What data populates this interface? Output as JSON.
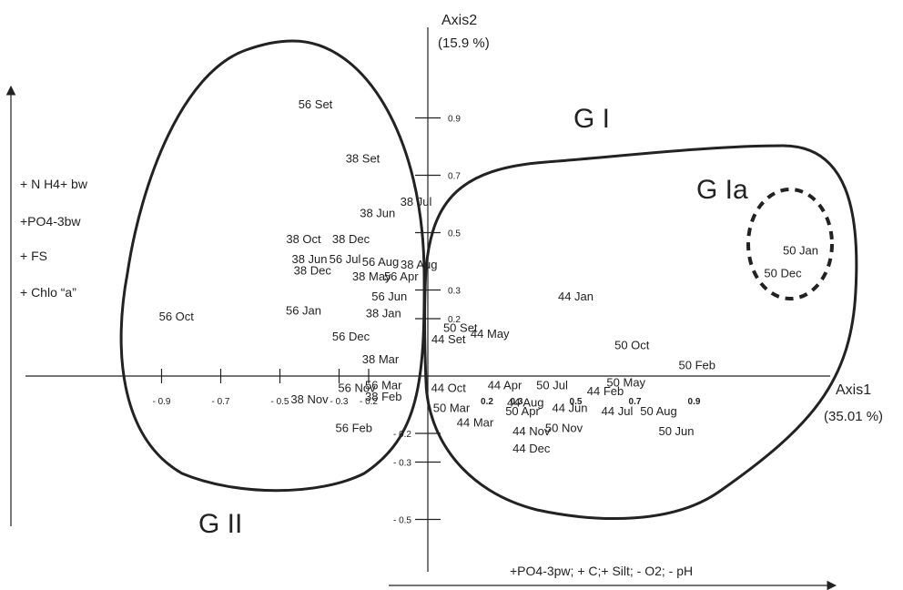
{
  "chart_data": {
    "type": "scatter",
    "axis1_label": "Axis1",
    "axis1_variance": "(35.01 %)",
    "axis2_label": "Axis2",
    "axis2_variance": "(15.9 %)",
    "x_ticks": [
      {
        "value": -0.9,
        "label": "- 0.9",
        "bold": false
      },
      {
        "value": -0.7,
        "label": "- 0.7",
        "bold": false
      },
      {
        "value": -0.5,
        "label": "- 0.5",
        "bold": false
      },
      {
        "value": -0.3,
        "label": "- 0.3",
        "bold": false
      },
      {
        "value": -0.2,
        "label": "- 0.2",
        "bold": false
      },
      {
        "value": 0.2,
        "label": "0.2",
        "bold": true
      },
      {
        "value": 0.3,
        "label": "0.3",
        "bold": true
      },
      {
        "value": 0.5,
        "label": "0.5",
        "bold": true
      },
      {
        "value": 0.7,
        "label": "0.7",
        "bold": true
      },
      {
        "value": 0.9,
        "label": "0.9",
        "bold": true
      }
    ],
    "y_ticks": [
      {
        "value": 0.9,
        "label": "0.9"
      },
      {
        "value": 0.7,
        "label": "0.7"
      },
      {
        "value": 0.5,
        "label": "0.5"
      },
      {
        "value": 0.3,
        "label": "0.3"
      },
      {
        "value": 0.2,
        "label": "0.2"
      },
      {
        "value": -0.2,
        "label": "- 0.2"
      },
      {
        "value": -0.3,
        "label": "- 0.3"
      },
      {
        "value": -0.5,
        "label": "- 0.5"
      }
    ],
    "points": [
      {
        "label": "56 Set",
        "x": -0.38,
        "y": 0.95
      },
      {
        "label": "38 Set",
        "x": -0.22,
        "y": 0.76
      },
      {
        "label": "38 Jun",
        "x": -0.17,
        "y": 0.57
      },
      {
        "label": "38 Jul",
        "x": -0.04,
        "y": 0.61
      },
      {
        "label": "38 Oct",
        "x": -0.42,
        "y": 0.48
      },
      {
        "label": "38 Dec",
        "x": -0.26,
        "y": 0.48
      },
      {
        "label": "38 Jun",
        "x": -0.4,
        "y": 0.41
      },
      {
        "label": "56 Jul",
        "x": -0.28,
        "y": 0.41
      },
      {
        "label": "38 Dec",
        "x": -0.39,
        "y": 0.37
      },
      {
        "label": "56 Aug",
        "x": -0.16,
        "y": 0.4
      },
      {
        "label": "38 Aug",
        "x": -0.03,
        "y": 0.39
      },
      {
        "label": "38 May",
        "x": -0.19,
        "y": 0.35
      },
      {
        "label": "56 Apr",
        "x": -0.09,
        "y": 0.35
      },
      {
        "label": "56 Jun",
        "x": -0.13,
        "y": 0.28
      },
      {
        "label": "56 Oct",
        "x": -0.85,
        "y": 0.21
      },
      {
        "label": "56 Jan",
        "x": -0.42,
        "y": 0.23
      },
      {
        "label": "38 Jan",
        "x": -0.15,
        "y": 0.22
      },
      {
        "label": "56 Dec",
        "x": -0.26,
        "y": 0.14
      },
      {
        "label": "38 Mar",
        "x": -0.16,
        "y": 0.06
      },
      {
        "label": "56 Nov",
        "x": -0.24,
        "y": -0.04
      },
      {
        "label": "56 Mar",
        "x": -0.15,
        "y": -0.03
      },
      {
        "label": "38 Nov",
        "x": -0.4,
        "y": -0.08
      },
      {
        "label": "38 Feb",
        "x": -0.15,
        "y": -0.07
      },
      {
        "label": "56 Feb",
        "x": -0.25,
        "y": -0.18
      },
      {
        "label": "50 Set",
        "x": 0.11,
        "y": 0.17
      },
      {
        "label": "44 May",
        "x": 0.21,
        "y": 0.15
      },
      {
        "label": "44 Set",
        "x": 0.07,
        "y": 0.13
      },
      {
        "label": "44 Jan",
        "x": 0.5,
        "y": 0.28
      },
      {
        "label": "50 Oct",
        "x": 0.69,
        "y": 0.11
      },
      {
        "label": "50 Feb",
        "x": 0.91,
        "y": 0.04
      },
      {
        "label": "50 Jan",
        "x": 1.26,
        "y": 0.44
      },
      {
        "label": "50 Dec",
        "x": 1.2,
        "y": 0.36
      },
      {
        "label": "44 Oct",
        "x": 0.07,
        "y": -0.04
      },
      {
        "label": "44 Apr",
        "x": 0.26,
        "y": -0.03
      },
      {
        "label": "50 Jul",
        "x": 0.42,
        "y": -0.03
      },
      {
        "label": "50 May",
        "x": 0.67,
        "y": -0.02
      },
      {
        "label": "44 Feb",
        "x": 0.6,
        "y": -0.05
      },
      {
        "label": "44 Aug",
        "x": 0.33,
        "y": -0.09
      },
      {
        "label": "50 Mar",
        "x": 0.08,
        "y": -0.11
      },
      {
        "label": "50 Apr",
        "x": 0.32,
        "y": -0.12
      },
      {
        "label": "44 Jun",
        "x": 0.48,
        "y": -0.11
      },
      {
        "label": "44 Jul",
        "x": 0.64,
        "y": -0.12
      },
      {
        "label": "50 Aug",
        "x": 0.78,
        "y": -0.12
      },
      {
        "label": "44 Mar",
        "x": 0.16,
        "y": -0.16
      },
      {
        "label": "44 Nov",
        "x": 0.35,
        "y": -0.19
      },
      {
        "label": "50 Nov",
        "x": 0.46,
        "y": -0.18
      },
      {
        "label": "50 Jun",
        "x": 0.84,
        "y": -0.19
      },
      {
        "label": "44 Dec",
        "x": 0.35,
        "y": -0.25
      }
    ],
    "groups": [
      {
        "label": "G I"
      },
      {
        "label": "G Ia"
      },
      {
        "label": "G II"
      }
    ],
    "axis1_variables": "+PO4-3pw; + C;+ Silt; - O2; - pH",
    "axis2_variables": [
      "+ N H4+ bw",
      "+PO4-3bw",
      "+ FS",
      "+  Chlo “a”"
    ]
  }
}
